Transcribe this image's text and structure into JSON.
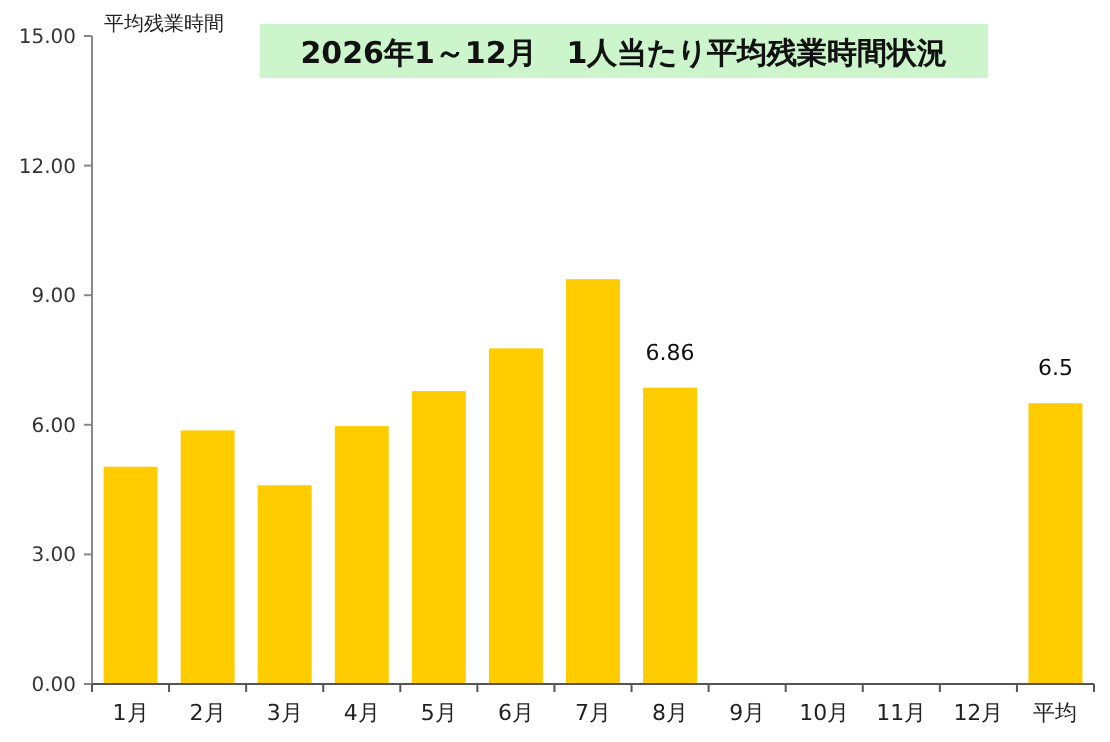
{
  "chart_data": {
    "type": "bar",
    "title": "2026年1～12月　1人当たり平均残業時間状況",
    "ylabel": "平均残業時間",
    "categories": [
      "1月",
      "2月",
      "3月",
      "4月",
      "5月",
      "6月",
      "7月",
      "8月",
      "9月",
      "10月",
      "11月",
      "12月",
      "平均"
    ],
    "values": [
      5.03,
      5.87,
      4.6,
      5.97,
      6.78,
      7.77,
      9.37,
      6.86,
      null,
      null,
      null,
      null,
      6.5
    ],
    "value_labels": [
      null,
      null,
      null,
      null,
      null,
      null,
      null,
      "6.86",
      null,
      null,
      null,
      null,
      "6.5"
    ],
    "color": "#ffcc00",
    "ylim": [
      0,
      15
    ],
    "yticks": [
      {
        "value": 0,
        "label": "0.00"
      },
      {
        "value": 3,
        "label": "3.00"
      },
      {
        "value": 6,
        "label": "6.00"
      },
      {
        "value": 9,
        "label": "9.00"
      },
      {
        "value": 12,
        "label": "12.00"
      },
      {
        "value": 15,
        "label": "15.00"
      }
    ],
    "grid": false
  }
}
